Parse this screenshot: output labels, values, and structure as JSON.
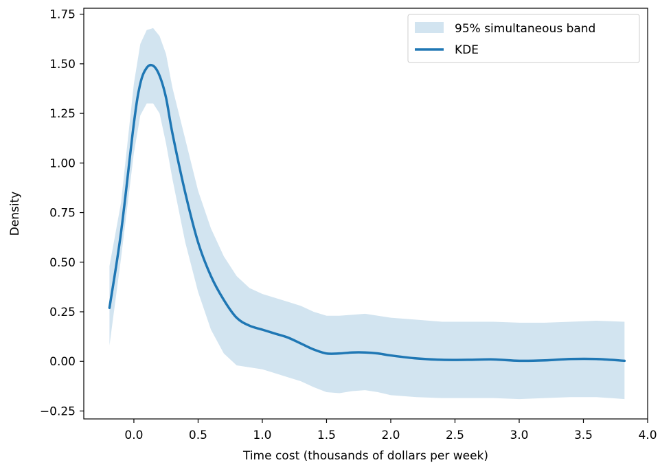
{
  "chart_data": {
    "type": "line",
    "title": "",
    "xlabel": "Time cost (thousands of dollars per week)",
    "ylabel": "Density",
    "xlim": [
      -0.39,
      4.0
    ],
    "ylim": [
      -0.29,
      1.78
    ],
    "x_ticks": [
      0.0,
      0.5,
      1.0,
      1.5,
      2.0,
      2.5,
      3.0,
      3.5,
      4.0
    ],
    "x_tick_labels": [
      "0.0",
      "0.5",
      "1.0",
      "1.5",
      "2.0",
      "2.5",
      "3.0",
      "3.5",
      "4.0"
    ],
    "y_ticks": [
      -0.25,
      0.0,
      0.25,
      0.5,
      0.75,
      1.0,
      1.25,
      1.5,
      1.75
    ],
    "y_tick_labels": [
      "−0.25",
      "0.00",
      "0.25",
      "0.50",
      "0.75",
      "1.00",
      "1.25",
      "1.50",
      "1.75"
    ],
    "grid": false,
    "legend_position": "top-right",
    "colors": {
      "line": "#1f77b4",
      "band": "#1f77b4",
      "band_opacity": 0.2
    },
    "series": [
      {
        "name": "KDE",
        "kind": "line",
        "x": [
          -0.19,
          -0.1,
          0.0,
          0.05,
          0.1,
          0.15,
          0.2,
          0.25,
          0.3,
          0.4,
          0.5,
          0.6,
          0.7,
          0.8,
          0.9,
          1.0,
          1.1,
          1.2,
          1.3,
          1.4,
          1.5,
          1.6,
          1.7,
          1.8,
          1.9,
          2.0,
          2.2,
          2.4,
          2.6,
          2.8,
          3.0,
          3.2,
          3.4,
          3.6,
          3.82
        ],
        "y": [
          0.27,
          0.65,
          1.2,
          1.4,
          1.48,
          1.49,
          1.44,
          1.33,
          1.15,
          0.85,
          0.6,
          0.43,
          0.31,
          0.22,
          0.18,
          0.16,
          0.14,
          0.12,
          0.09,
          0.06,
          0.04,
          0.04,
          0.045,
          0.045,
          0.04,
          0.03,
          0.015,
          0.008,
          0.008,
          0.01,
          0.003,
          0.005,
          0.012,
          0.012,
          0.003
        ]
      },
      {
        "name": "95% simultaneous band",
        "kind": "band",
        "x": [
          -0.19,
          -0.1,
          0.0,
          0.05,
          0.1,
          0.15,
          0.2,
          0.25,
          0.3,
          0.4,
          0.5,
          0.6,
          0.7,
          0.8,
          0.9,
          1.0,
          1.1,
          1.2,
          1.3,
          1.4,
          1.5,
          1.6,
          1.7,
          1.8,
          1.9,
          2.0,
          2.2,
          2.4,
          2.6,
          2.8,
          3.0,
          3.2,
          3.4,
          3.6,
          3.82
        ],
        "lower": [
          0.08,
          0.52,
          1.05,
          1.24,
          1.3,
          1.3,
          1.25,
          1.1,
          0.92,
          0.6,
          0.35,
          0.16,
          0.04,
          -0.02,
          -0.03,
          -0.04,
          -0.06,
          -0.08,
          -0.1,
          -0.13,
          -0.155,
          -0.16,
          -0.15,
          -0.145,
          -0.155,
          -0.17,
          -0.18,
          -0.185,
          -0.185,
          -0.185,
          -0.19,
          -0.185,
          -0.18,
          -0.18,
          -0.19
        ],
        "upper": [
          0.48,
          0.8,
          1.4,
          1.6,
          1.67,
          1.68,
          1.64,
          1.55,
          1.38,
          1.12,
          0.86,
          0.67,
          0.53,
          0.43,
          0.37,
          0.34,
          0.32,
          0.3,
          0.28,
          0.25,
          0.23,
          0.23,
          0.235,
          0.24,
          0.23,
          0.22,
          0.21,
          0.2,
          0.2,
          0.2,
          0.195,
          0.195,
          0.2,
          0.205,
          0.2
        ]
      }
    ]
  }
}
